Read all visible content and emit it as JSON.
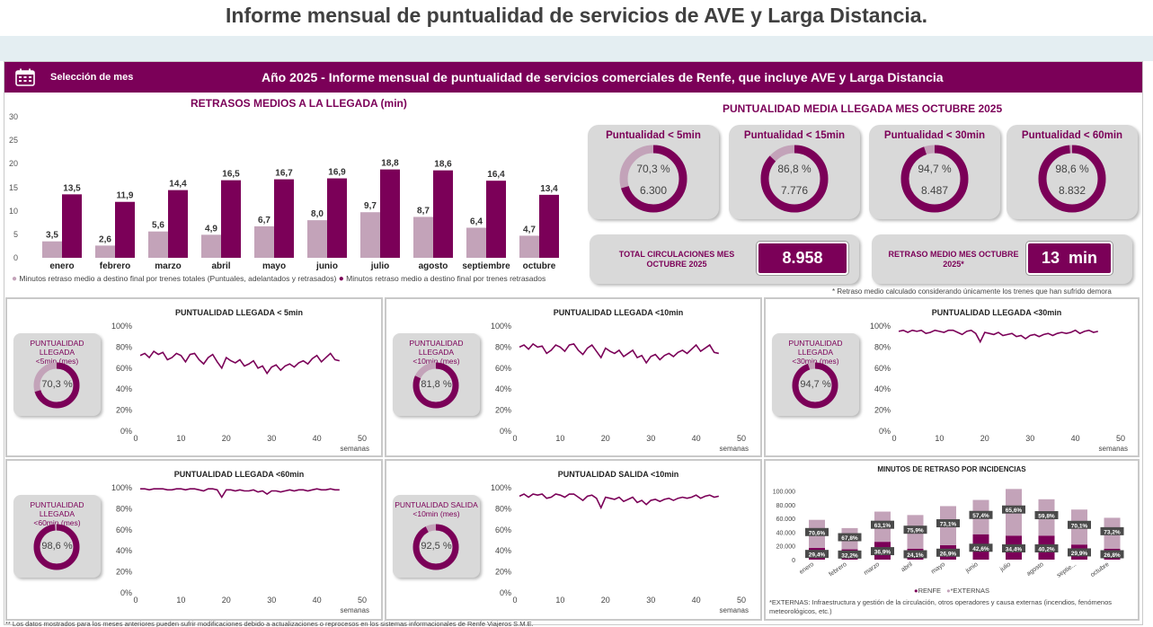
{
  "page_title": "Informe mensual de puntualidad de servicios de AVE y Larga Distancia.",
  "header": {
    "select_label": "Selección de mes",
    "title": "Año 2025 - Informe mensual de puntualidad de servicios comerciales de Renfe, que incluye AVE y Larga Distancia",
    "calendar_icon": "calendar-icon"
  },
  "colors": {
    "primary": "#7b0058",
    "light": "#c3a3b9",
    "panel": "#d9d9d9"
  },
  "delays": {
    "title": "RETRASOS MEDIOS A LA LLEGADA (min)",
    "legend_total": "Minutos retraso medio a destino final por trenes totales (Puntuales, adelantados y retrasados)",
    "legend_late": "Minutos retraso medio a destino final por trenes retrasados",
    "y_ticks": [
      "30",
      "25",
      "20",
      "15",
      "10",
      "5",
      "0"
    ]
  },
  "punctuality": {
    "title": "PUNTUALIDAD MEDIA LLEGADA MES OCTUBRE 2025",
    "cards": [
      {
        "label": "Puntualidad < 5min",
        "pct_text": "70,3 %",
        "count": "6.300",
        "pct": 70.3
      },
      {
        "label": "Puntualidad < 15min",
        "pct_text": "86,8 %",
        "count": "7.776",
        "pct": 86.8
      },
      {
        "label": "Puntualidad < 30min",
        "pct_text": "94,7 %",
        "count": "8.487",
        "pct": 94.7
      },
      {
        "label": "Puntualidad < 60min",
        "pct_text": "98,6 %",
        "count": "8.832",
        "pct": 98.6
      }
    ],
    "total_label": "TOTAL CIRCULACIONES MES OCTUBRE 2025",
    "total_value": "8.958",
    "delay_label": "RETRASO MEDIO MES OCTUBRE 2025*",
    "delay_value": "13  min",
    "footnote": "* Retraso medio calculado considerando únicamente los trenes que han sufrido demora"
  },
  "weekly_axis": {
    "y_ticks": [
      "100%",
      "80%",
      "60%",
      "40%",
      "20%",
      "0%"
    ],
    "x_ticks": [
      "0",
      "10",
      "20",
      "30",
      "40",
      "50"
    ],
    "x_label": "semanas"
  },
  "weekly_panels": [
    {
      "title": "PUNTUALIDAD LLEGADA < 5min",
      "kpi_label": "PUNTUALIDAD LLEGADA\n<5min (mes)",
      "kpi_text": "70,3 %",
      "kpi": 70.3
    },
    {
      "title": "PUNTUALIDAD LLEGADA <10min",
      "kpi_label": "PUNTUALIDAD LLEGADA\n<10min (mes)",
      "kpi_text": "81,8 %",
      "kpi": 81.8
    },
    {
      "title": "PUNTUALIDAD LLEGADA <30min",
      "kpi_label": "PUNTUALIDAD LLEGADA\n<30min (mes)",
      "kpi_text": "94,7 %",
      "kpi": 94.7
    },
    {
      "title": "PUNTUALIDAD LLEGADA <60min",
      "kpi_label": "PUNTUALIDAD LLEGADA\n<60min (mes)",
      "kpi_text": "98,6 %",
      "kpi": 98.6
    },
    {
      "title": "PUNTUALIDAD SALIDA <10min",
      "kpi_label": "PUNTUALIDAD SALIDA\n<10min (mes)",
      "kpi_text": "92,5 %",
      "kpi": 92.5
    }
  ],
  "incidents": {
    "title": "MINUTOS DE RETRASO POR INCIDENCIAS",
    "y_ticks": [
      "100.000",
      "80.000",
      "60.000",
      "40.000",
      "20.000",
      "0"
    ],
    "legend_renfe": "RENFE",
    "legend_ext": "*EXTERNAS",
    "note": "*EXTERNAS: Infraestructura y gestión de la circulación, otros operadores y causa externas (incendios, fenómenos meteorológicos, etc.)"
  },
  "footer_note": "** Los datos mostrados para los meses anteriores pueden sufrir modificaciones debido a actualizaciones o reprocesos en los sistemas informacionales de Renfe Viajeros S.M.E.",
  "chart_data": [
    {
      "type": "bar",
      "title": "RETRASOS MEDIOS A LA LLEGADA (min)",
      "categories": [
        "enero",
        "febrero",
        "marzo",
        "abril",
        "mayo",
        "junio",
        "julio",
        "agosto",
        "septiembre",
        "octubre"
      ],
      "ylim": [
        0,
        30
      ],
      "series": [
        {
          "name": "Minutos retraso medio a destino final por trenes totales (Puntuales, adelantados y retrasados)",
          "values": [
            3.5,
            2.6,
            5.6,
            4.9,
            6.7,
            8.0,
            9.7,
            8.7,
            6.4,
            4.7
          ],
          "labels": [
            "3,5",
            "2,6",
            "5,6",
            "4,9",
            "6,7",
            "8,0",
            "9,7",
            "8,7",
            "6,4",
            "4,7"
          ]
        },
        {
          "name": "Minutos retraso medio a destino final por trenes retrasados",
          "values": [
            13.5,
            11.9,
            14.4,
            16.5,
            16.7,
            16.9,
            18.8,
            18.6,
            16.4,
            13.4
          ],
          "labels": [
            "13,5",
            "11,9",
            "14,4",
            "16,5",
            "16,7",
            "16,9",
            "18,8",
            "18,6",
            "16,4",
            "13,4"
          ]
        }
      ]
    },
    {
      "type": "line",
      "title": "PUNTUALIDAD LLEGADA < 5min",
      "xlim": [
        0,
        50
      ],
      "ylim": [
        0,
        100
      ],
      "values": [
        72,
        74,
        70,
        76,
        73,
        75,
        68,
        70,
        74,
        72,
        66,
        73,
        74,
        68,
        64,
        70,
        73,
        66,
        60,
        70,
        67,
        65,
        68,
        62,
        64,
        67,
        60,
        62,
        55,
        61,
        63,
        58,
        62,
        64,
        61,
        65,
        67,
        64,
        69,
        72,
        66,
        70,
        74,
        68,
        67
      ]
    },
    {
      "type": "line",
      "title": "PUNTUALIDAD LLEGADA <10min",
      "xlim": [
        0,
        50
      ],
      "ylim": [
        0,
        100
      ],
      "values": [
        80,
        82,
        78,
        83,
        80,
        81,
        74,
        77,
        82,
        80,
        76,
        82,
        83,
        77,
        73,
        79,
        82,
        76,
        70,
        79,
        76,
        74,
        77,
        71,
        74,
        77,
        70,
        72,
        65,
        71,
        73,
        68,
        72,
        74,
        71,
        75,
        77,
        74,
        78,
        82,
        76,
        79,
        82,
        75,
        74
      ]
    },
    {
      "type": "line",
      "title": "PUNTUALIDAD LLEGADA <30min",
      "xlim": [
        0,
        50
      ],
      "ylim": [
        0,
        100
      ],
      "values": [
        95,
        96,
        94,
        96,
        95,
        96,
        93,
        94,
        96,
        95,
        94,
        96,
        96,
        94,
        92,
        95,
        96,
        93,
        85,
        94,
        93,
        92,
        94,
        91,
        92,
        93,
        90,
        91,
        88,
        91,
        92,
        90,
        92,
        93,
        91,
        93,
        94,
        93,
        94,
        96,
        93,
        95,
        96,
        94,
        95
      ]
    },
    {
      "type": "line",
      "title": "PUNTUALIDAD LLEGADA <60min",
      "xlim": [
        0,
        50
      ],
      "ylim": [
        0,
        100
      ],
      "values": [
        99,
        99,
        98,
        99,
        99,
        99,
        98,
        98,
        99,
        99,
        98,
        99,
        99,
        98,
        97,
        99,
        99,
        98,
        91,
        98,
        98,
        97,
        98,
        97,
        97,
        98,
        96,
        97,
        94,
        97,
        97,
        96,
        97,
        98,
        97,
        98,
        98,
        97,
        98,
        99,
        98,
        98,
        99,
        98,
        98
      ]
    },
    {
      "type": "line",
      "title": "PUNTUALIDAD SALIDA <10min",
      "xlim": [
        0,
        50
      ],
      "ylim": [
        0,
        100
      ],
      "values": [
        92,
        94,
        91,
        94,
        93,
        94,
        90,
        91,
        94,
        93,
        91,
        94,
        94,
        91,
        88,
        92,
        93,
        90,
        81,
        91,
        90,
        89,
        91,
        87,
        89,
        91,
        86,
        88,
        84,
        88,
        89,
        87,
        89,
        90,
        88,
        90,
        91,
        90,
        91,
        93,
        90,
        92,
        93,
        91,
        92
      ]
    },
    {
      "type": "bar",
      "title": "MINUTOS DE RETRASO POR INCIDENCIAS",
      "categories": [
        "enero",
        "febrero",
        "marzo",
        "abril",
        "mayo",
        "junio",
        "julio",
        "agosto",
        "septie...",
        "octubre"
      ],
      "ylim": [
        0,
        110000
      ],
      "stacked": true,
      "series": [
        {
          "name": "RENFE",
          "values": [
            17000,
            15000,
            26000,
            16000,
            21000,
            37000,
            35000,
            35000,
            22000,
            16000
          ],
          "labels": [
            "29,4%",
            "32,2%",
            "36,9%",
            "24,1%",
            "26,9%",
            "42,6%",
            "34,4%",
            "40,2%",
            "29,9%",
            "26,8%"
          ]
        },
        {
          "name": "*EXTERNAS",
          "values": [
            41000,
            31000,
            44000,
            49000,
            57000,
            50000,
            68000,
            53000,
            51000,
            45000
          ],
          "labels": [
            "70,6%",
            "67,8%",
            "63,1%",
            "75,9%",
            "73,1%",
            "57,4%",
            "65,6%",
            "59,8%",
            "70,1%",
            "73,2%"
          ]
        }
      ]
    }
  ]
}
